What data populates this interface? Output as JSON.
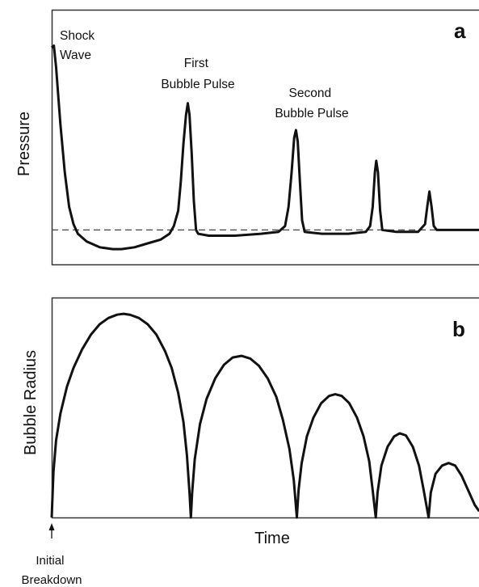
{
  "chart_data": [
    {
      "type": "line",
      "panel_label": "a",
      "title": "",
      "xlabel": "",
      "ylabel": "Pressure",
      "grid": false,
      "xlim": [
        0,
        100
      ],
      "ylim": [
        -0.15,
        1.0
      ],
      "reference_line": {
        "y": 0,
        "style": "dashed"
      },
      "annotations": [
        {
          "text": [
            "Shock",
            "Wave"
          ]
        },
        {
          "text": [
            "First",
            "Bubble Pulse"
          ]
        },
        {
          "text": [
            "Second",
            "Bubble Pulse"
          ]
        }
      ],
      "series": [
        {
          "points": [
            [
              0,
              0.95
            ],
            [
              0.5,
              0.96
            ],
            [
              1,
              0.85
            ],
            [
              2,
              0.55
            ],
            [
              3,
              0.3
            ],
            [
              4,
              0.12
            ],
            [
              5,
              0.03
            ],
            [
              6,
              -0.02
            ],
            [
              8,
              -0.06
            ],
            [
              11,
              -0.09
            ],
            [
              14,
              -0.1
            ],
            [
              16,
              -0.1
            ],
            [
              19,
              -0.09
            ],
            [
              22,
              -0.07
            ],
            [
              25,
              -0.05
            ],
            [
              27,
              -0.02
            ],
            [
              28,
              0.02
            ],
            [
              29,
              0.1
            ],
            [
              29.6,
              0.25
            ],
            [
              30.2,
              0.45
            ],
            [
              30.8,
              0.6
            ],
            [
              31.2,
              0.66
            ],
            [
              31.6,
              0.6
            ],
            [
              32.1,
              0.4
            ],
            [
              32.6,
              0.15
            ],
            [
              33.1,
              0.0
            ],
            [
              33.6,
              -0.02
            ],
            [
              36,
              -0.03
            ],
            [
              42,
              -0.03
            ],
            [
              48,
              -0.02
            ],
            [
              52,
              -0.01
            ],
            [
              53.5,
              0.02
            ],
            [
              54.3,
              0.12
            ],
            [
              55,
              0.3
            ],
            [
              55.6,
              0.48
            ],
            [
              56,
              0.52
            ],
            [
              56.4,
              0.46
            ],
            [
              56.9,
              0.25
            ],
            [
              57.4,
              0.05
            ],
            [
              58,
              -0.01
            ],
            [
              62,
              -0.02
            ],
            [
              68,
              -0.02
            ],
            [
              72,
              -0.01
            ],
            [
              73,
              0.02
            ],
            [
              73.6,
              0.12
            ],
            [
              74.1,
              0.3
            ],
            [
              74.4,
              0.36
            ],
            [
              74.8,
              0.3
            ],
            [
              75.3,
              0.1
            ],
            [
              75.8,
              0.0
            ],
            [
              79,
              -0.01
            ],
            [
              84,
              -0.01
            ],
            [
              85.6,
              0.03
            ],
            [
              86.1,
              0.12
            ],
            [
              86.6,
              0.2
            ],
            [
              87.1,
              0.12
            ],
            [
              87.6,
              0.02
            ],
            [
              88.3,
              0.0
            ],
            [
              92,
              0.0
            ],
            [
              100,
              0.0
            ]
          ]
        }
      ]
    },
    {
      "type": "line",
      "panel_label": "b",
      "title": "",
      "xlabel": "Time",
      "ylabel": "Bubble Radius",
      "grid": false,
      "xlim": [
        0,
        100
      ],
      "ylim": [
        0,
        1.0
      ],
      "annotations": [
        {
          "text": [
            "Initial",
            "Breakdown"
          ],
          "marker": "arrow-up"
        }
      ],
      "series": [
        {
          "points": [
            [
              0,
              0.0
            ],
            [
              0.4,
              0.22
            ],
            [
              1,
              0.37
            ],
            [
              2,
              0.5
            ],
            [
              3.5,
              0.63
            ],
            [
              5,
              0.72
            ],
            [
              7,
              0.81
            ],
            [
              9,
              0.88
            ],
            [
              11,
              0.93
            ],
            [
              13,
              0.96
            ],
            [
              15,
              0.976
            ],
            [
              16.5,
              0.98
            ],
            [
              18,
              0.975
            ],
            [
              20,
              0.96
            ],
            [
              22,
              0.93
            ],
            [
              24,
              0.88
            ],
            [
              26,
              0.8
            ],
            [
              27.5,
              0.72
            ],
            [
              29,
              0.6
            ],
            [
              30.2,
              0.46
            ],
            [
              31,
              0.3
            ],
            [
              31.6,
              0.12
            ],
            [
              31.9,
              0.0
            ],
            [
              32.2,
              0.12
            ],
            [
              32.8,
              0.28
            ],
            [
              34,
              0.45
            ],
            [
              35.5,
              0.57
            ],
            [
              37.5,
              0.67
            ],
            [
              39.5,
              0.735
            ],
            [
              41.5,
              0.77
            ],
            [
              43.5,
              0.778
            ],
            [
              45.5,
              0.765
            ],
            [
              47.5,
              0.73
            ],
            [
              49.5,
              0.67
            ],
            [
              51.5,
              0.58
            ],
            [
              53,
              0.47
            ],
            [
              54.5,
              0.33
            ],
            [
              55.5,
              0.18
            ],
            [
              56.2,
              0.0
            ],
            [
              56.6,
              0.13
            ],
            [
              57.3,
              0.26
            ],
            [
              58.5,
              0.39
            ],
            [
              60,
              0.48
            ],
            [
              61.8,
              0.55
            ],
            [
              63.6,
              0.585
            ],
            [
              65,
              0.593
            ],
            [
              66.5,
              0.585
            ],
            [
              68.2,
              0.55
            ],
            [
              70,
              0.48
            ],
            [
              71.5,
              0.39
            ],
            [
              72.8,
              0.27
            ],
            [
              73.6,
              0.13
            ],
            [
              74.3,
              0.0
            ],
            [
              74.7,
              0.12
            ],
            [
              75.6,
              0.25
            ],
            [
              77,
              0.34
            ],
            [
              78.5,
              0.39
            ],
            [
              79.8,
              0.405
            ],
            [
              81.2,
              0.395
            ],
            [
              82.8,
              0.34
            ],
            [
              84.2,
              0.25
            ],
            [
              85.2,
              0.14
            ],
            [
              86.4,
              0.0
            ],
            [
              86.9,
              0.12
            ],
            [
              88,
              0.21
            ],
            [
              89.5,
              0.25
            ],
            [
              91,
              0.262
            ],
            [
              92.5,
              0.25
            ],
            [
              94,
              0.2
            ],
            [
              95.5,
              0.13
            ],
            [
              97,
              0.06
            ],
            [
              98,
              0.03
            ]
          ]
        }
      ]
    }
  ]
}
